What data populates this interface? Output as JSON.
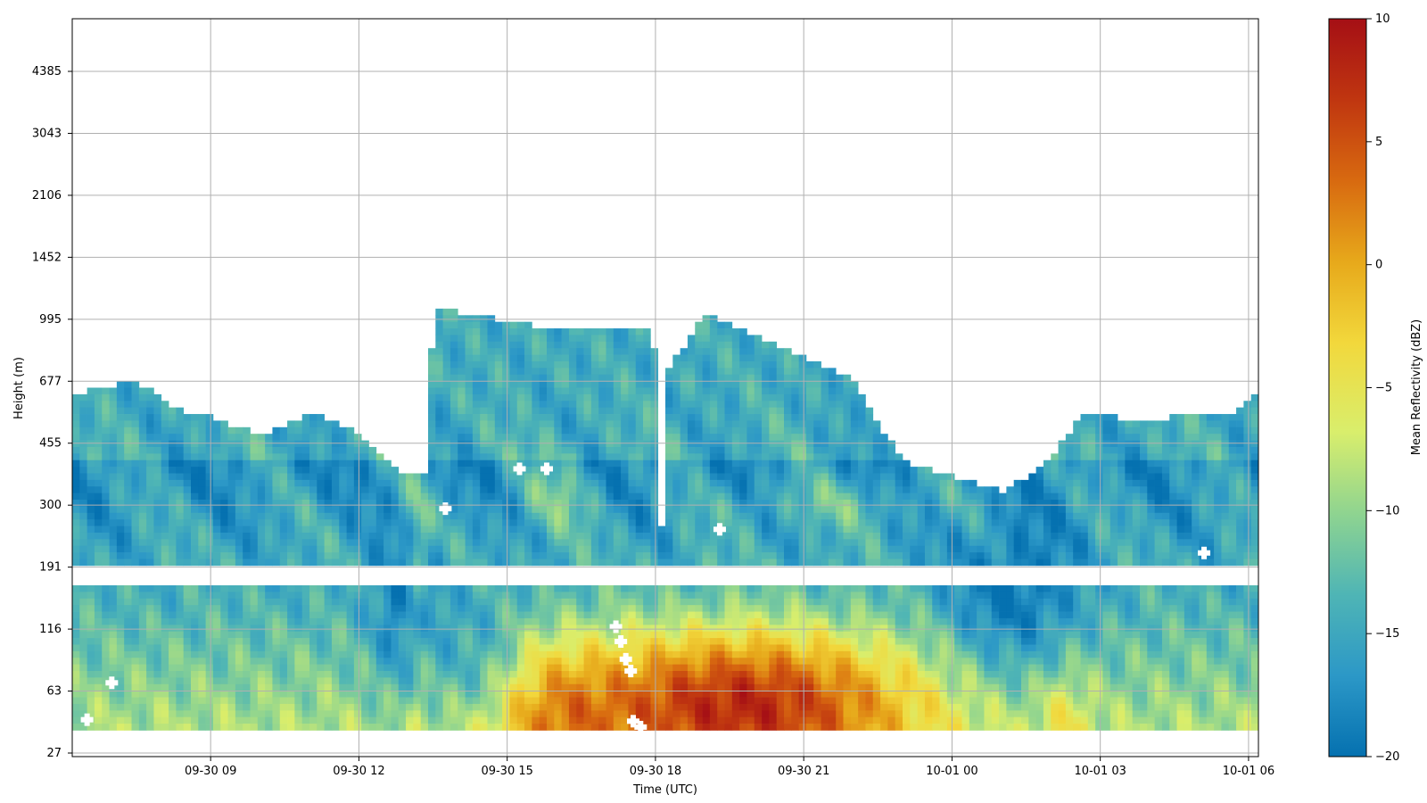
{
  "chart_data": {
    "type": "heatmap",
    "title": "",
    "xlabel": "Time (UTC)",
    "ylabel": "Height (m)",
    "x_time_range_hours": [
      6.2,
      30.2
    ],
    "x_ticks": [
      {
        "label": "09-30 09",
        "hours": 9
      },
      {
        "label": "09-30 12",
        "hours": 12
      },
      {
        "label": "09-30 15",
        "hours": 15
      },
      {
        "label": "09-30 18",
        "hours": 18
      },
      {
        "label": "09-30 21",
        "hours": 21
      },
      {
        "label": "10-01 00",
        "hours": 24
      },
      {
        "label": "10-01 03",
        "hours": 27
      },
      {
        "label": "10-01 06",
        "hours": 30
      }
    ],
    "y_ticks": [
      "27",
      "63",
      "116",
      "191",
      "300",
      "455",
      "677",
      "995",
      "1452",
      "2106",
      "3043",
      "4385"
    ],
    "colorbar": {
      "label": "Mean Reflectivity (dBZ)",
      "min": -20,
      "max": 10,
      "ticks": [
        "10",
        "5",
        "0",
        "−5",
        "−10",
        "−15",
        "−20"
      ],
      "colormap": [
        "#0571b0",
        "#2c98c7",
        "#4fb5b5",
        "#8fd490",
        "#d9ee6c",
        "#f2d83c",
        "#e7a91b",
        "#d86a10",
        "#c03610",
        "#a50f15"
      ]
    },
    "grid": true,
    "description_levels_dbz": {
      "upper_cloud_min": -20,
      "surface_rain_max": 10
    }
  }
}
